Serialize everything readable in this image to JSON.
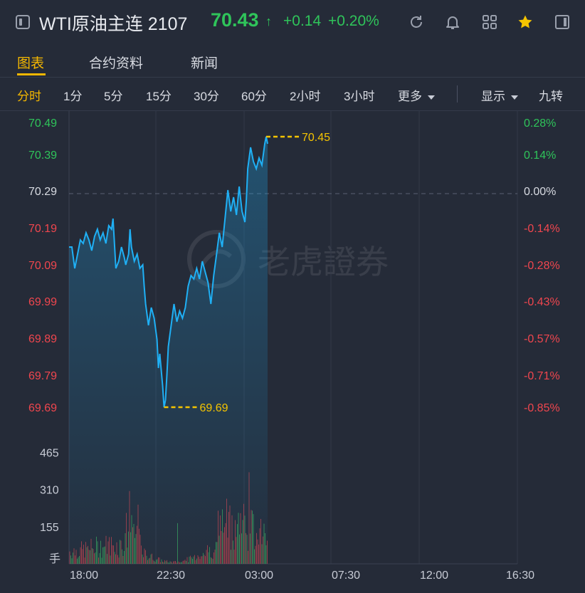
{
  "header": {
    "title": "WTI原油主连 2107",
    "price": "70.43",
    "price_arrow": "↑",
    "change": "+0.14",
    "change_pct": "+0.20%",
    "icons": [
      "refresh-icon",
      "bell-icon",
      "grid-icon",
      "star-icon",
      "panel-icon"
    ]
  },
  "tabs": [
    "图表",
    "合约资料",
    "新闻"
  ],
  "timebar": {
    "items": [
      "分时",
      "1分",
      "5分",
      "15分",
      "30分",
      "60分",
      "2小时",
      "3小时"
    ],
    "more": "更多",
    "display": "显示",
    "nine": "九转"
  },
  "watermark": "老虎證券",
  "chart_data": {
    "type": "line",
    "price_axis": {
      "ticks": [
        "70.49",
        "70.39",
        "70.29",
        "70.19",
        "70.09",
        "69.99",
        "69.89",
        "69.79",
        "69.69"
      ],
      "pct_ticks": [
        "0.28%",
        "0.14%",
        "0.00%",
        "-0.14%",
        "-0.28%",
        "-0.43%",
        "-0.57%",
        "-0.71%",
        "-0.85%"
      ],
      "prev_close": 70.29,
      "ylim": [
        69.69,
        70.49
      ]
    },
    "x_ticks": [
      "18:00",
      "22:30",
      "03:00",
      "07:30",
      "12:00",
      "16:30"
    ],
    "high_label": "70.45",
    "low_label": "69.69",
    "high": 70.45,
    "low": 69.69,
    "price_series": [
      [
        0,
        70.14
      ],
      [
        4,
        70.14
      ],
      [
        8,
        70.08
      ],
      [
        12,
        70.12
      ],
      [
        16,
        70.16
      ],
      [
        20,
        70.15
      ],
      [
        24,
        70.18
      ],
      [
        28,
        70.16
      ],
      [
        32,
        70.13
      ],
      [
        36,
        70.17
      ],
      [
        40,
        70.19
      ],
      [
        44,
        70.16
      ],
      [
        48,
        70.18
      ],
      [
        52,
        70.15
      ],
      [
        56,
        70.2
      ],
      [
        60,
        70.19
      ],
      [
        62,
        70.22
      ],
      [
        64,
        70.15
      ],
      [
        66,
        70.08
      ],
      [
        70,
        70.1
      ],
      [
        74,
        70.14
      ],
      [
        78,
        70.11
      ],
      [
        80,
        70.09
      ],
      [
        84,
        70.12
      ],
      [
        86,
        70.19
      ],
      [
        88,
        70.14
      ],
      [
        92,
        70.1
      ],
      [
        96,
        70.12
      ],
      [
        100,
        70.08
      ],
      [
        104,
        70.09
      ],
      [
        106,
        70.03
      ],
      [
        108,
        69.98
      ],
      [
        112,
        69.92
      ],
      [
        116,
        69.97
      ],
      [
        120,
        69.94
      ],
      [
        124,
        69.88
      ],
      [
        126,
        69.8
      ],
      [
        128,
        69.84
      ],
      [
        132,
        69.75
      ],
      [
        134,
        69.69
      ],
      [
        136,
        69.71
      ],
      [
        138,
        69.78
      ],
      [
        140,
        69.86
      ],
      [
        144,
        69.92
      ],
      [
        148,
        69.98
      ],
      [
        152,
        69.93
      ],
      [
        156,
        69.96
      ],
      [
        160,
        69.94
      ],
      [
        164,
        69.97
      ],
      [
        168,
        70.03
      ],
      [
        172,
        70.06
      ],
      [
        176,
        70.05
      ],
      [
        180,
        70.08
      ],
      [
        184,
        70.05
      ],
      [
        188,
        70.1
      ],
      [
        192,
        70.07
      ],
      [
        196,
        70.04
      ],
      [
        200,
        69.98
      ],
      [
        204,
        70.06
      ],
      [
        208,
        70.12
      ],
      [
        212,
        70.18
      ],
      [
        216,
        70.14
      ],
      [
        220,
        70.22
      ],
      [
        224,
        70.3
      ],
      [
        228,
        70.24
      ],
      [
        232,
        70.28
      ],
      [
        236,
        70.23
      ],
      [
        240,
        70.31
      ],
      [
        244,
        70.24
      ],
      [
        248,
        70.21
      ],
      [
        250,
        70.27
      ],
      [
        252,
        70.36
      ],
      [
        256,
        70.42
      ],
      [
        260,
        70.38
      ],
      [
        264,
        70.36
      ],
      [
        268,
        70.39
      ],
      [
        272,
        70.37
      ],
      [
        276,
        70.43
      ],
      [
        278,
        70.45
      ],
      [
        280,
        70.43
      ]
    ],
    "volume_axis": {
      "ticks": [
        "465",
        "310",
        "155"
      ],
      "unit": "手",
      "ylim": [
        0,
        520
      ]
    }
  }
}
